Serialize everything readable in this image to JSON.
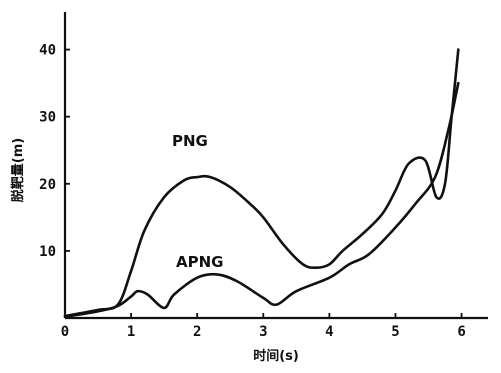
{
  "chart_data": {
    "type": "line",
    "title": "",
    "xlabel": "时间(s)",
    "ylabel": "脱靶量(m)",
    "xlim": [
      0,
      6.4
    ],
    "ylim": [
      0,
      45
    ],
    "x_ticks": [
      0,
      1,
      2,
      3,
      4,
      5,
      6
    ],
    "y_ticks": [
      10,
      20,
      30,
      40
    ],
    "grid": false,
    "legend": "none",
    "series": [
      {
        "name": "PNG",
        "color": "#111111",
        "x": [
          0,
          0.5,
          0.8,
          1.0,
          1.2,
          1.5,
          1.8,
          2.0,
          2.2,
          2.5,
          2.8,
          3.0,
          3.3,
          3.6,
          3.8,
          4.0,
          4.2,
          4.5,
          4.8,
          5.0,
          5.2,
          5.45,
          5.62,
          5.75,
          5.85,
          5.95
        ],
        "values": [
          0.3,
          1.2,
          2.0,
          7.0,
          13.0,
          18.0,
          20.5,
          21.0,
          21.0,
          19.5,
          17.0,
          15.0,
          11.0,
          8.0,
          7.5,
          8.0,
          10.0,
          12.5,
          15.5,
          19.0,
          23.0,
          23.5,
          18.0,
          20.0,
          30.0,
          40.0
        ]
      },
      {
        "name": "APNG",
        "color": "#111111",
        "x": [
          0,
          0.5,
          0.8,
          1.0,
          1.1,
          1.25,
          1.5,
          1.65,
          2.0,
          2.3,
          2.6,
          3.0,
          3.2,
          3.5,
          4.0,
          4.3,
          4.6,
          5.0,
          5.3,
          5.6,
          5.8,
          5.95
        ],
        "values": [
          0.2,
          1.0,
          1.8,
          3.2,
          4.0,
          3.5,
          1.5,
          3.5,
          6.0,
          6.5,
          5.5,
          3.0,
          2.0,
          4.0,
          6.0,
          8.0,
          9.5,
          13.5,
          17.0,
          21.0,
          28.0,
          35.0
        ]
      }
    ]
  }
}
